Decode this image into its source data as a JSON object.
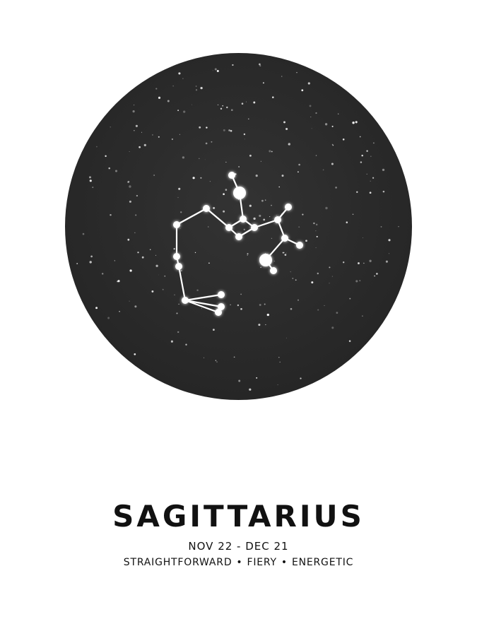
{
  "poster": {
    "sign_name": "SAGITTARIUS",
    "date_range": "NOV 22 - DEC 21",
    "traits": [
      "STRAIGHTFORWARD",
      "FIERY",
      "ENERGETIC"
    ],
    "trait_separator": "•"
  },
  "colors": {
    "background": "#ffffff",
    "sky": "#2b2b2b",
    "stars": "#ffffff",
    "text": "#111111"
  }
}
